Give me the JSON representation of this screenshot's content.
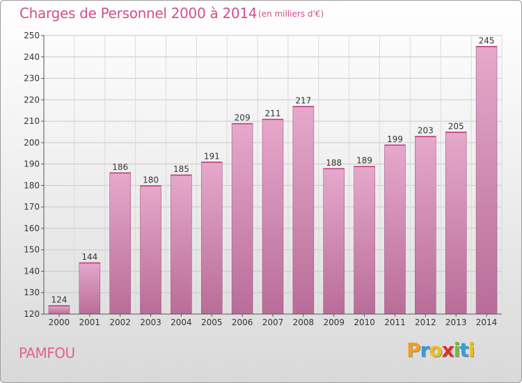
{
  "header": {
    "title": "Charges de Personnel 2000 à 2014",
    "subtitle": "(en milliers d'€)"
  },
  "footer": {
    "city": "PAMFOU",
    "logo": {
      "p": "P",
      "r": "r",
      "o": "o",
      "x": "x",
      "i": "i",
      "t": "t",
      "i2": "i"
    }
  },
  "colors": {
    "bar_top": "#e6a8cb",
    "bar_bottom": "#b86d98",
    "title": "#d0508a",
    "axis": "#333333"
  },
  "chart_data": {
    "type": "bar",
    "categories": [
      "2000",
      "2001",
      "2002",
      "2003",
      "2004",
      "2005",
      "2006",
      "2007",
      "2008",
      "2009",
      "2010",
      "2011",
      "2012",
      "2013",
      "2014"
    ],
    "values": [
      124,
      144,
      186,
      180,
      185,
      191,
      209,
      211,
      217,
      188,
      189,
      199,
      203,
      205,
      245
    ],
    "ylim": [
      120,
      250
    ],
    "yticks": [
      120,
      130,
      140,
      150,
      160,
      170,
      180,
      190,
      200,
      210,
      220,
      230,
      240,
      250
    ],
    "grid": true,
    "legend": "none"
  }
}
